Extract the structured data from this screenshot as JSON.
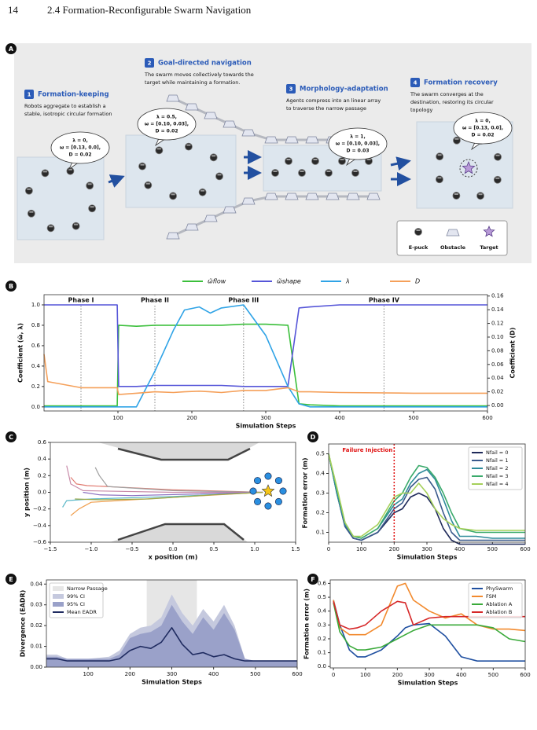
{
  "header": {
    "page_number": "14",
    "section": "2.4 Formation-Reconfigurable Swarm Navigation"
  },
  "panel_a": {
    "label": "A",
    "steps": [
      {
        "number": "1",
        "title": "Formation-keeping",
        "text": [
          "Robots aggregate to establish a",
          "stable, isotropic circular formation"
        ]
      },
      {
        "number": "2",
        "title": "Goal-directed navigation",
        "text": [
          "The swarm moves collectively towards the",
          "target while maintaining a formation."
        ]
      },
      {
        "number": "3",
        "title": "Morphology-adaptation",
        "text": [
          "Agents compress into an linear array",
          "to traverse the narrow passage"
        ]
      },
      {
        "number": "4",
        "title": "Formation recovery",
        "text": [
          "The swarm converges at the",
          "destination, restoring its circular",
          "topology"
        ]
      }
    ],
    "bubbles": [
      [
        "λ = 0,",
        "ω = [0.13, 0.0],",
        "D = 0.02"
      ],
      [
        "λ = 0.5,",
        "ω = [0.10, 0.03],",
        "D = 0.02"
      ],
      [
        "λ = 1,",
        "ω = [0.10, 0.03],",
        "D = 0.03"
      ],
      [
        "λ = 0,",
        "ω = [0.13, 0.0],",
        "D = 0.02"
      ]
    ],
    "legend": [
      "E-puck",
      "Obstacle",
      "Target"
    ]
  },
  "chart_data": [
    {
      "type": "line",
      "label": "B",
      "x": [
        0,
        5,
        50,
        99,
        101,
        125,
        150,
        175,
        190,
        210,
        225,
        240,
        270,
        300,
        330,
        345,
        360,
        400,
        500,
        600
      ],
      "xlim": [
        0,
        600
      ],
      "xticks": [
        100,
        200,
        300,
        400,
        500,
        600
      ],
      "ylim": [
        -0.04,
        1.1
      ],
      "yticks": [
        {
          "value": 0,
          "label": "0.0"
        },
        0.2,
        0.4,
        0.6,
        0.8,
        {
          "value": 1,
          "label": "1.0"
        }
      ],
      "y2lim": [
        -0.008,
        0.162
      ],
      "y2ticks": [
        {
          "value": 0,
          "label": "0.00"
        },
        0.02,
        0.04,
        0.06,
        0.08,
        {
          "value": 0.1,
          "label": "0.10"
        },
        0.12,
        0.14,
        0.16
      ],
      "xlabel": "Simulation Steps",
      "ylabel": "Coefficient (ω̃, λ)",
      "y2label": "Coefficient (D)",
      "legend": "top",
      "phases": [
        {
          "label": "Phase I",
          "x": 50
        },
        {
          "label": "Phase II",
          "x": 150
        },
        {
          "label": "Phase III",
          "x": 270
        },
        {
          "label": "Phase IV",
          "x": 460
        }
      ],
      "series": [
        {
          "name": "ω̃flow",
          "color": "#3bbf3b",
          "values": [
            0.01,
            0.01,
            0.01,
            0.01,
            0.8,
            0.79,
            0.8,
            0.8,
            0.8,
            0.8,
            0.8,
            0.8,
            0.81,
            0.81,
            0.8,
            0.03,
            0.02,
            0.01,
            0.01,
            0.01
          ]
        },
        {
          "name": "ω̃shape",
          "color": "#5555d8",
          "values": [
            1.0,
            1.0,
            1.0,
            1.0,
            0.2,
            0.2,
            0.21,
            0.21,
            0.21,
            0.21,
            0.21,
            0.21,
            0.2,
            0.2,
            0.2,
            0.97,
            0.98,
            1.0,
            1.0,
            1.0
          ]
        },
        {
          "name": "λ",
          "color": "#2fa3e6",
          "values": [
            0,
            0,
            0,
            0,
            0,
            0,
            0.35,
            0.75,
            0.95,
            0.98,
            0.92,
            0.97,
            1.0,
            0.7,
            0.2,
            0.03,
            0,
            0,
            0,
            0
          ]
        },
        {
          "name": "D",
          "color": "#f5a05a",
          "axis": "y2",
          "values": [
            0.075,
            0.035,
            0.026,
            0.026,
            0.016,
            0.018,
            0.02,
            0.019,
            0.02,
            0.021,
            0.02,
            0.019,
            0.022,
            0.022,
            0.026,
            0.02,
            0.02,
            0.019,
            0.018,
            0.018
          ]
        }
      ]
    },
    {
      "type": "line",
      "label": "C",
      "xlim": [
        -1.5,
        1.5
      ],
      "ylim": [
        -0.6,
        0.6
      ],
      "xticks": [
        {
          "value": -1.5,
          "label": "−1.5"
        },
        {
          "value": -1,
          "label": "−1.0"
        },
        {
          "value": -0.5,
          "label": "−0.5"
        },
        {
          "value": 0,
          "label": "0.0"
        },
        0.5,
        {
          "value": 1,
          "label": "1.0"
        },
        1.5
      ],
      "yticks": [
        {
          "value": -0.6,
          "label": "−0.6"
        },
        {
          "value": -0.4,
          "label": "−0.4"
        },
        {
          "value": -0.2,
          "label": "−0.2"
        },
        {
          "value": 0,
          "label": "0.0"
        },
        0.2,
        0.4,
        0.6
      ],
      "xlabel": "x position (m)",
      "ylabel": "y position (m)",
      "series": [
        {
          "color": "#e07a70",
          "x": [
            -1.25,
            -1.18,
            -1.05,
            0,
            1.1
          ],
          "values": [
            0.18,
            0.1,
            0.08,
            0.03,
            0
          ]
        },
        {
          "color": "#a0a0a0",
          "x": [
            -0.95,
            -0.9,
            -0.8,
            0,
            1.1
          ],
          "values": [
            0.3,
            0.2,
            0.07,
            0.02,
            0
          ]
        },
        {
          "color": "#c88aa8",
          "x": [
            -1.3,
            -1.25,
            -1.1,
            0,
            1.1
          ],
          "values": [
            0.32,
            0.1,
            0.02,
            0,
            0
          ]
        },
        {
          "color": "#8a6fc0",
          "x": [
            -1.1,
            -0.9,
            -0.5,
            0.3,
            1.1
          ],
          "values": [
            0,
            -0.03,
            -0.04,
            -0.02,
            0
          ]
        },
        {
          "color": "#5bb8c8",
          "x": [
            -1.35,
            -1.3,
            -1,
            0,
            1.1
          ],
          "values": [
            -0.18,
            -0.1,
            -0.08,
            -0.05,
            0
          ]
        },
        {
          "color": "#f0a050",
          "x": [
            -1.25,
            -1.15,
            -1,
            0,
            1.1
          ],
          "values": [
            -0.28,
            -0.2,
            -0.12,
            -0.06,
            0
          ]
        },
        {
          "color": "#9aa84a",
          "x": [
            -1.2,
            -0.9,
            -0.3,
            0.5,
            1.1
          ],
          "values": [
            -0.08,
            -0.09,
            -0.08,
            -0.03,
            0
          ]
        }
      ]
    },
    {
      "type": "line",
      "label": "D",
      "x": [
        0,
        25,
        50,
        75,
        100,
        150,
        200,
        225,
        250,
        275,
        300,
        325,
        350,
        375,
        400,
        450,
        500,
        600
      ],
      "xlim": [
        0,
        600
      ],
      "xticks": [
        0,
        100,
        200,
        300,
        400,
        500,
        600
      ],
      "ylim": [
        0.05,
        0.55
      ],
      "yticks": [
        0.1,
        0.2,
        0.3,
        0.4,
        0.5
      ],
      "xlabel": "Simulation Steps",
      "ylabel": "Formation error (m)",
      "legend": "upper right",
      "annotation": {
        "text": "Failure Injection",
        "x": 200,
        "color": "#e01010"
      },
      "series": [
        {
          "name": "Nfail = 0",
          "color": "#1f2a5a",
          "values": [
            0.5,
            0.3,
            0.13,
            0.07,
            0.06,
            0.1,
            0.2,
            0.22,
            0.28,
            0.3,
            0.28,
            0.22,
            0.12,
            0.06,
            0.04,
            0.04,
            0.04,
            0.04
          ]
        },
        {
          "name": "Nfail = 1",
          "color": "#3b5a8c",
          "values": [
            0.5,
            0.3,
            0.13,
            0.07,
            0.06,
            0.1,
            0.22,
            0.25,
            0.33,
            0.37,
            0.38,
            0.32,
            0.2,
            0.1,
            0.06,
            0.06,
            0.06,
            0.06
          ]
        },
        {
          "name": "Nfail = 2",
          "color": "#2e8b9a",
          "values": [
            0.5,
            0.3,
            0.14,
            0.08,
            0.07,
            0.12,
            0.24,
            0.27,
            0.35,
            0.4,
            0.42,
            0.37,
            0.27,
            0.16,
            0.08,
            0.08,
            0.07,
            0.07
          ]
        },
        {
          "name": "Nfail = 3",
          "color": "#3aaa6b",
          "values": [
            0.5,
            0.32,
            0.15,
            0.08,
            0.07,
            0.12,
            0.26,
            0.3,
            0.38,
            0.44,
            0.43,
            0.38,
            0.3,
            0.2,
            0.12,
            0.1,
            0.1,
            0.1
          ]
        },
        {
          "name": "Nfail = 4",
          "color": "#a5d05a",
          "values": [
            0.5,
            0.33,
            0.15,
            0.08,
            0.08,
            0.14,
            0.28,
            0.3,
            0.3,
            0.35,
            0.3,
            0.22,
            0.17,
            0.14,
            0.12,
            0.11,
            0.11,
            0.11
          ]
        }
      ]
    },
    {
      "type": "line",
      "label": "E",
      "x": [
        0,
        25,
        50,
        100,
        150,
        175,
        200,
        225,
        250,
        275,
        300,
        325,
        350,
        375,
        400,
        425,
        450,
        475,
        500,
        600
      ],
      "xlim": [
        0,
        600
      ],
      "xticks": [
        100,
        200,
        300,
        400,
        500,
        600
      ],
      "ylim": [
        0,
        0.042
      ],
      "yticks": [
        {
          "value": 0,
          "label": "0.00"
        },
        0.01,
        0.02,
        0.03,
        0.04
      ],
      "xlabel": "Simulation Steps",
      "ylabel": "Divergence (EADR)",
      "legend": "upper left",
      "span": {
        "name": "Narrow Passage",
        "range": [
          240,
          360
        ],
        "color": "#e6e6e6"
      },
      "series": [
        {
          "name": "99% CI",
          "color": "#c5c9de",
          "style": "area",
          "values": [
            0.006,
            0.006,
            0.004,
            0.004,
            0.005,
            0.008,
            0.016,
            0.019,
            0.02,
            0.024,
            0.035,
            0.026,
            0.02,
            0.028,
            0.022,
            0.03,
            0.02,
            0.004,
            0.003,
            0.003
          ]
        },
        {
          "name": "95% CI",
          "color": "#9aa1c9",
          "style": "area",
          "values": [
            0.005,
            0.005,
            0.004,
            0.004,
            0.004,
            0.006,
            0.014,
            0.016,
            0.017,
            0.02,
            0.03,
            0.022,
            0.016,
            0.024,
            0.018,
            0.026,
            0.018,
            0.004,
            0.003,
            0.003
          ]
        },
        {
          "name": "Mean EADR",
          "color": "#1f2b60",
          "values": [
            0.004,
            0.004,
            0.003,
            0.003,
            0.003,
            0.004,
            0.008,
            0.01,
            0.009,
            0.012,
            0.019,
            0.011,
            0.006,
            0.007,
            0.005,
            0.006,
            0.004,
            0.003,
            0.003,
            0.003
          ]
        }
      ]
    },
    {
      "type": "line",
      "label": "F",
      "x": [
        0,
        20,
        50,
        75,
        100,
        150,
        200,
        225,
        250,
        300,
        350,
        400,
        450,
        500,
        550,
        600
      ],
      "xlim": [
        -10,
        600
      ],
      "xticks": [
        0,
        100,
        200,
        300,
        400,
        500,
        600
      ],
      "ylim": [
        -0.01,
        0.625
      ],
      "yticks": [
        {
          "value": 0,
          "label": "0.0"
        },
        0.1,
        0.2,
        0.3,
        0.4,
        0.5,
        0.6
      ],
      "xlabel": "Simulation Steps",
      "ylabel": "Formation error (m)",
      "legend": "upper right",
      "series": [
        {
          "name": "PhySwarm",
          "color": "#1f4fa0",
          "values": [
            0.48,
            0.3,
            0.12,
            0.07,
            0.07,
            0.12,
            0.22,
            0.28,
            0.3,
            0.31,
            0.22,
            0.07,
            0.04,
            0.04,
            0.04,
            0.04
          ]
        },
        {
          "name": "FSM",
          "color": "#f28a2e",
          "values": [
            0.48,
            0.28,
            0.23,
            0.23,
            0.23,
            0.3,
            0.58,
            0.6,
            0.48,
            0.4,
            0.35,
            0.38,
            0.3,
            0.27,
            0.27,
            0.26
          ]
        },
        {
          "name": "Ablation A",
          "color": "#3aaa3a",
          "values": [
            0.46,
            0.25,
            0.15,
            0.12,
            0.12,
            0.14,
            0.2,
            0.23,
            0.26,
            0.3,
            0.3,
            0.3,
            0.3,
            0.28,
            0.2,
            0.18
          ]
        },
        {
          "name": "Ablation B",
          "color": "#d62728",
          "values": [
            0.47,
            0.3,
            0.27,
            0.28,
            0.3,
            0.4,
            0.47,
            0.46,
            0.3,
            0.35,
            0.36,
            0.36,
            0.36,
            0.36,
            0.36,
            0.36
          ]
        }
      ]
    }
  ]
}
